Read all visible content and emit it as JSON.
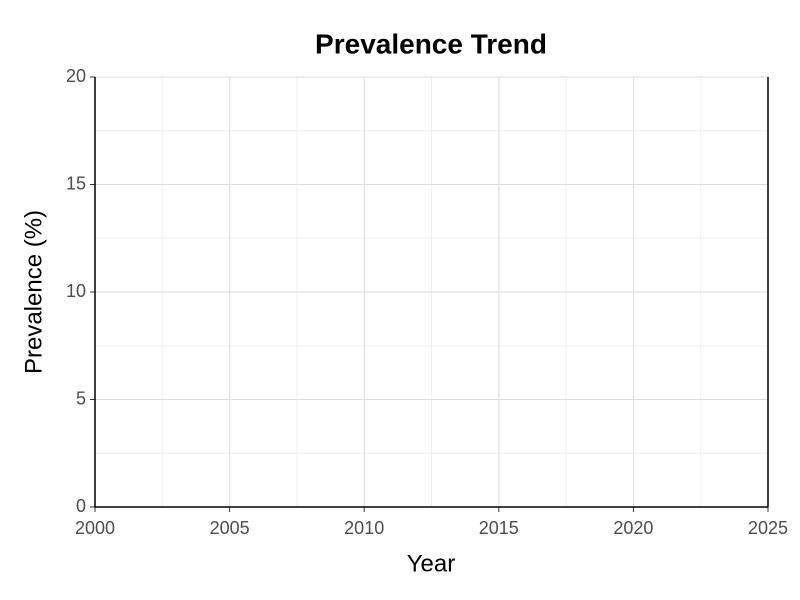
{
  "chart_data": {
    "type": "line",
    "title": "Prevalence Trend",
    "xlabel": "Year",
    "ylabel": "Prevalence (%)",
    "series": [],
    "xlim": [
      2000,
      2025
    ],
    "xticks": [
      2000,
      2005,
      2010,
      2015,
      2020,
      2025
    ],
    "ylim": [
      0,
      20
    ],
    "yticks": [
      0,
      5,
      10,
      15,
      20
    ],
    "grid": true,
    "minor_grid": true
  }
}
